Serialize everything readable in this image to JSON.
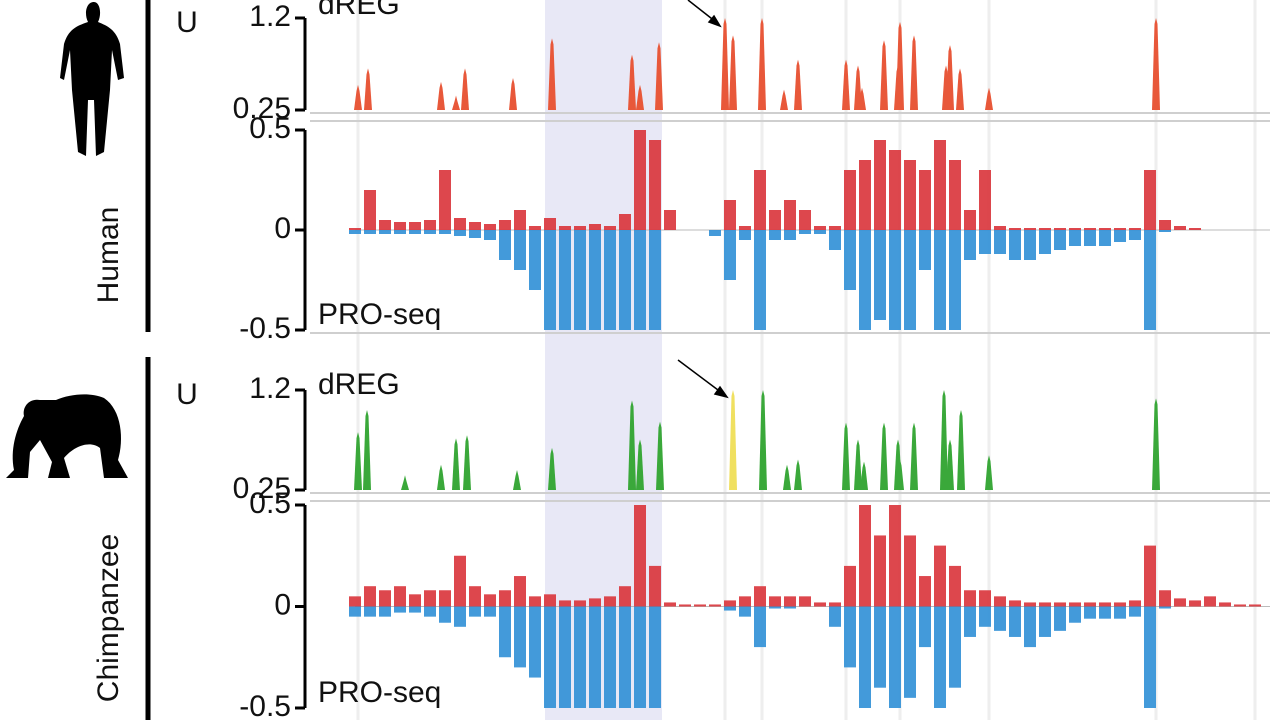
{
  "chart_data": [
    {
      "type": "bar",
      "species": "Human",
      "axis_label": "U",
      "annotation": "dREG",
      "color": "#e8583a",
      "xlim": [
        0,
        915
      ],
      "ylim": [
        0.25,
        1.2
      ],
      "yticks": [
        1.2,
        0.25
      ],
      "x": [
        3,
        13,
        86,
        101,
        110,
        158,
        197,
        277,
        285,
        304,
        370,
        378,
        407,
        429,
        443,
        491,
        503,
        507,
        529,
        543,
        545,
        559,
        591,
        595,
        605,
        634,
        801
      ],
      "values": [
        0.51,
        0.68,
        0.54,
        0.4,
        0.68,
        0.58,
        0.99,
        0.82,
        0.51,
        0.95,
        1.2,
        1.02,
        1.2,
        0.46,
        0.77,
        0.77,
        0.71,
        0.48,
        0.97,
        0.71,
        1.16,
        1.02,
        0.71,
        0.92,
        0.68,
        0.48,
        1.2
      ]
    },
    {
      "type": "strand",
      "annotation": "PRO-seq",
      "xlim": [
        0,
        915
      ],
      "ylim": [
        -0.5,
        0.5
      ],
      "yticks": [
        0.5,
        0,
        -0.5
      ],
      "x": [
        0,
        15,
        30,
        45,
        60,
        75,
        90,
        105,
        120,
        135,
        150,
        165,
        180,
        195,
        210,
        225,
        240,
        255,
        270,
        285,
        300,
        315,
        330,
        345,
        360,
        375,
        390,
        405,
        420,
        435,
        450,
        465,
        480,
        495,
        510,
        525,
        540,
        555,
        570,
        585,
        600,
        615,
        630,
        645,
        660,
        675,
        690,
        705,
        720,
        735,
        750,
        765,
        780,
        795,
        810,
        825,
        840,
        855,
        870,
        885,
        900
      ],
      "series": [
        {
          "name": "plus",
          "color": "#d9333a",
          "values": [
            0.01,
            0.2,
            0.05,
            0.04,
            0.04,
            0.05,
            0.3,
            0.06,
            0.04,
            0.03,
            0.05,
            0.1,
            0.02,
            0.06,
            0.02,
            0.02,
            0.03,
            0.02,
            0.08,
            0.5,
            0.45,
            0.1,
            0,
            0,
            0,
            0.15,
            0.02,
            0.3,
            0.1,
            0.15,
            0.1,
            0.02,
            0.02,
            0.3,
            0.35,
            0.45,
            0.4,
            0.35,
            0.3,
            0.45,
            0.35,
            0.1,
            0.3,
            0.02,
            0.01,
            0.01,
            0.01,
            0.01,
            0.01,
            0.01,
            0.01,
            0.01,
            0.01,
            0.3,
            0.05,
            0.02,
            0.01,
            0,
            0,
            0,
            0
          ]
        },
        {
          "name": "minus",
          "color": "#2f8fd6",
          "values": [
            -0.02,
            -0.02,
            -0.02,
            -0.02,
            -0.02,
            -0.02,
            -0.02,
            -0.03,
            -0.04,
            -0.05,
            -0.15,
            -0.2,
            -0.3,
            -0.5,
            -0.5,
            -0.5,
            -0.5,
            -0.5,
            -0.5,
            -0.5,
            -0.5,
            0,
            0,
            0,
            -0.03,
            -0.25,
            -0.05,
            -0.5,
            -0.05,
            -0.05,
            -0.02,
            -0.02,
            -0.1,
            -0.3,
            -0.5,
            -0.45,
            -0.5,
            -0.5,
            -0.2,
            -0.5,
            -0.5,
            -0.15,
            -0.12,
            -0.12,
            -0.15,
            -0.15,
            -0.12,
            -0.1,
            -0.08,
            -0.08,
            -0.08,
            -0.06,
            -0.05,
            -0.5,
            -0.01,
            0,
            0,
            0,
            0,
            0,
            0
          ]
        }
      ]
    },
    {
      "type": "bar",
      "species": "Chimpanzee",
      "axis_label": "U",
      "annotation": "dREG",
      "color": "#3aa83a",
      "xlim": [
        0,
        915
      ],
      "ylim": [
        0.25,
        1.2
      ],
      "yticks": [
        1.2,
        0.25
      ],
      "x": [
        3,
        12,
        50,
        86,
        101,
        112,
        162,
        197,
        277,
        285,
        305,
        378,
        408,
        432,
        443,
        491,
        503,
        509,
        529,
        543,
        545,
        559,
        589,
        595,
        606,
        634,
        801
      ],
      "values": [
        0.8,
        1.01,
        0.39,
        0.49,
        0.74,
        0.77,
        0.44,
        0.65,
        1.1,
        0.73,
        0.9,
        1.2,
        1.2,
        0.49,
        0.54,
        0.89,
        0.73,
        0.52,
        0.89,
        0.73,
        0.54,
        0.89,
        1.2,
        0.73,
        1.01,
        0.58,
        1.12
      ],
      "colors": [
        "#3aa83a",
        "#3aa83a",
        "#3aa83a",
        "#3aa83a",
        "#3aa83a",
        "#3aa83a",
        "#3aa83a",
        "#3aa83a",
        "#3aa83a",
        "#3aa83a",
        "#3aa83a",
        "#f0e060",
        "#3aa83a",
        "#3aa83a",
        "#3aa83a",
        "#3aa83a",
        "#3aa83a",
        "#3aa83a",
        "#3aa83a",
        "#3aa83a",
        "#3aa83a",
        "#3aa83a",
        "#3aa83a",
        "#3aa83a",
        "#3aa83a",
        "#3aa83a",
        "#3aa83a"
      ]
    },
    {
      "type": "strand",
      "annotation": "PRO-seq",
      "xlim": [
        0,
        915
      ],
      "ylim": [
        -0.5,
        0.5
      ],
      "yticks": [
        0.5,
        0,
        -0.5
      ],
      "x": [
        0,
        15,
        30,
        45,
        60,
        75,
        90,
        105,
        120,
        135,
        150,
        165,
        180,
        195,
        210,
        225,
        240,
        255,
        270,
        285,
        300,
        315,
        330,
        345,
        360,
        375,
        390,
        405,
        420,
        435,
        450,
        465,
        480,
        495,
        510,
        525,
        540,
        555,
        570,
        585,
        600,
        615,
        630,
        645,
        660,
        675,
        690,
        705,
        720,
        735,
        750,
        765,
        780,
        795,
        810,
        825,
        840,
        855,
        870,
        885,
        900
      ],
      "series": [
        {
          "name": "plus",
          "color": "#d9333a",
          "values": [
            0.05,
            0.1,
            0.08,
            0.1,
            0.06,
            0.08,
            0.08,
            0.25,
            0.1,
            0.06,
            0.08,
            0.15,
            0.05,
            0.06,
            0.03,
            0.03,
            0.04,
            0.05,
            0.1,
            0.5,
            0.2,
            0.02,
            0.01,
            0.01,
            0.01,
            0.03,
            0.05,
            0.1,
            0.05,
            0.05,
            0.05,
            0.02,
            0.02,
            0.2,
            0.5,
            0.35,
            0.5,
            0.35,
            0.15,
            0.3,
            0.2,
            0.08,
            0.08,
            0.05,
            0.03,
            0.02,
            0.02,
            0.02,
            0.02,
            0.02,
            0.02,
            0.02,
            0.03,
            0.3,
            0.08,
            0.04,
            0.03,
            0.05,
            0.02,
            0.01,
            0.01
          ]
        },
        {
          "name": "minus",
          "color": "#2f8fd6",
          "values": [
            -0.05,
            -0.05,
            -0.05,
            -0.03,
            -0.03,
            -0.05,
            -0.08,
            -0.1,
            -0.05,
            -0.05,
            -0.25,
            -0.3,
            -0.35,
            -0.5,
            -0.5,
            -0.5,
            -0.5,
            -0.5,
            -0.5,
            -0.5,
            -0.5,
            0,
            0,
            0,
            0,
            -0.02,
            -0.05,
            -0.2,
            -0.01,
            -0.01,
            0,
            0,
            -0.1,
            -0.3,
            -0.5,
            -0.4,
            -0.5,
            -0.45,
            -0.2,
            -0.5,
            -0.4,
            -0.15,
            -0.1,
            -0.12,
            -0.15,
            -0.2,
            -0.15,
            -0.12,
            -0.08,
            -0.06,
            -0.06,
            -0.06,
            -0.05,
            -0.5,
            -0.01,
            0,
            0,
            0,
            0,
            0,
            0
          ]
        }
      ]
    }
  ]
}
